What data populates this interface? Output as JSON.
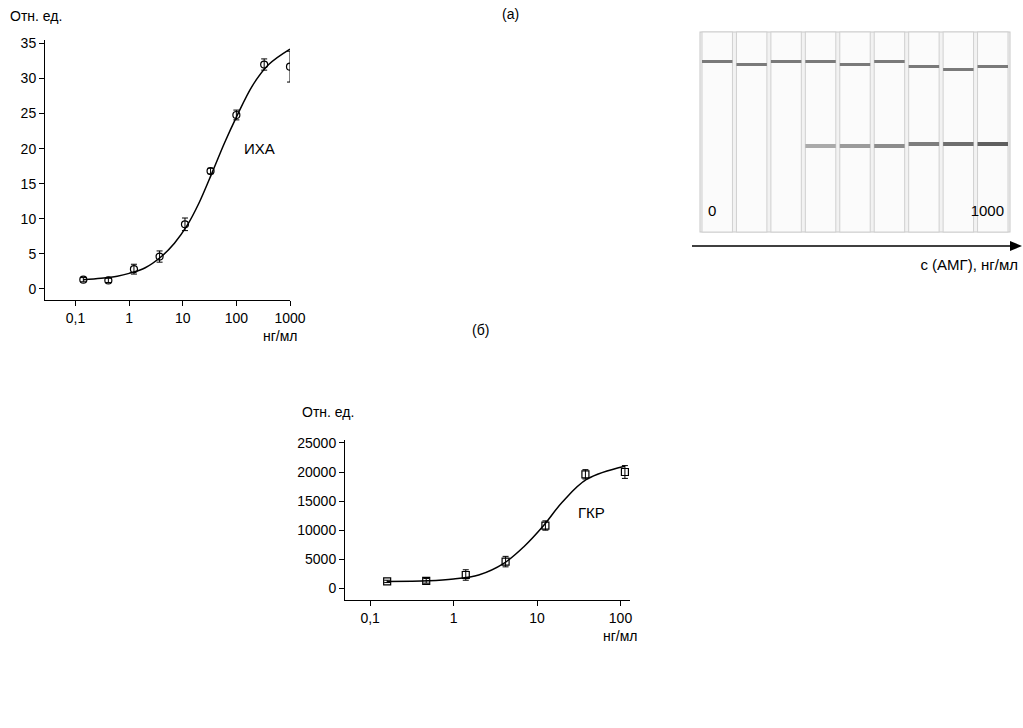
{
  "chart_data": [
    {
      "type": "scatter",
      "title": "(а)",
      "y_label": "Отн. ед.",
      "x_label": "нг/мл",
      "log": "x",
      "grid": false,
      "xlim": [
        0.027,
        1000
      ],
      "ylim": [
        -1.6,
        35.5
      ],
      "xticks": [
        {
          "value": 0.1,
          "label": "0,1"
        },
        1,
        10,
        100,
        1000
      ],
      "yticks": [
        0,
        5,
        10,
        15,
        20,
        25,
        30,
        35
      ],
      "annotations": [
        {
          "text": "ИХА",
          "x": 100,
          "y": 20
        }
      ],
      "series": [
        {
          "type": "scatter",
          "marker": "circle-open",
          "color": "#000000",
          "x": [
            0.14,
            0.41,
            1.23,
            3.7,
            11,
            33,
            100,
            330,
            1000
          ],
          "values": [
            1.3,
            1.2,
            2.8,
            4.6,
            9.2,
            16.8,
            24.8,
            32,
            31.7
          ],
          "errors": [
            0.3,
            0.3,
            0.7,
            0.8,
            0.9,
            0.4,
            0.7,
            0.8,
            2.2
          ]
        },
        {
          "type": "line",
          "line_style": "solid",
          "color": "#000000",
          "x": [
            0.14,
            0.3,
            0.6,
            1,
            2,
            4,
            7,
            12,
            20,
            35,
            60,
            100,
            200,
            400,
            1000
          ],
          "values": [
            1.3,
            1.5,
            1.8,
            2.2,
            3.0,
            4.6,
            6.5,
            9.0,
            12.2,
            16.5,
            20.8,
            24.5,
            29,
            32,
            34.2
          ]
        }
      ]
    },
    {
      "type": "scatter",
      "title": "(б)",
      "y_label": "Отн. ед.",
      "x_label": "нг/мл",
      "log": "x",
      "grid": false,
      "xlim": [
        0.05,
        130
      ],
      "ylim": [
        -2000,
        25500
      ],
      "xticks": [
        {
          "value": 0.1,
          "label": "0,1"
        },
        1,
        10,
        100
      ],
      "yticks": [
        0,
        5000,
        10000,
        15000,
        20000,
        25000
      ],
      "annotations": [
        {
          "text": "ГКР",
          "x": 25,
          "y": 13000
        }
      ],
      "series": [
        {
          "type": "scatter",
          "marker": "square-open",
          "color": "#000000",
          "x": [
            0.16,
            0.47,
            1.4,
            4.2,
            12.6,
            38,
            113
          ],
          "values": [
            1200,
            1300,
            2300,
            4600,
            10800,
            19600,
            20000
          ],
          "errors": [
            200,
            400,
            900,
            900,
            800,
            800,
            1100
          ]
        },
        {
          "type": "line",
          "line_style": "solid",
          "color": "#000000",
          "x": [
            0.16,
            0.5,
            1,
            2,
            4,
            7,
            12,
            20,
            40,
            113
          ],
          "values": [
            1200,
            1300,
            1600,
            2300,
            4300,
            7200,
            10800,
            14800,
            18800,
            21000
          ]
        }
      ]
    }
  ],
  "photo": {
    "strip_count": 9,
    "first_label": "0",
    "last_label": "1000",
    "axis_label": "c (АМГ), нг/мл"
  }
}
